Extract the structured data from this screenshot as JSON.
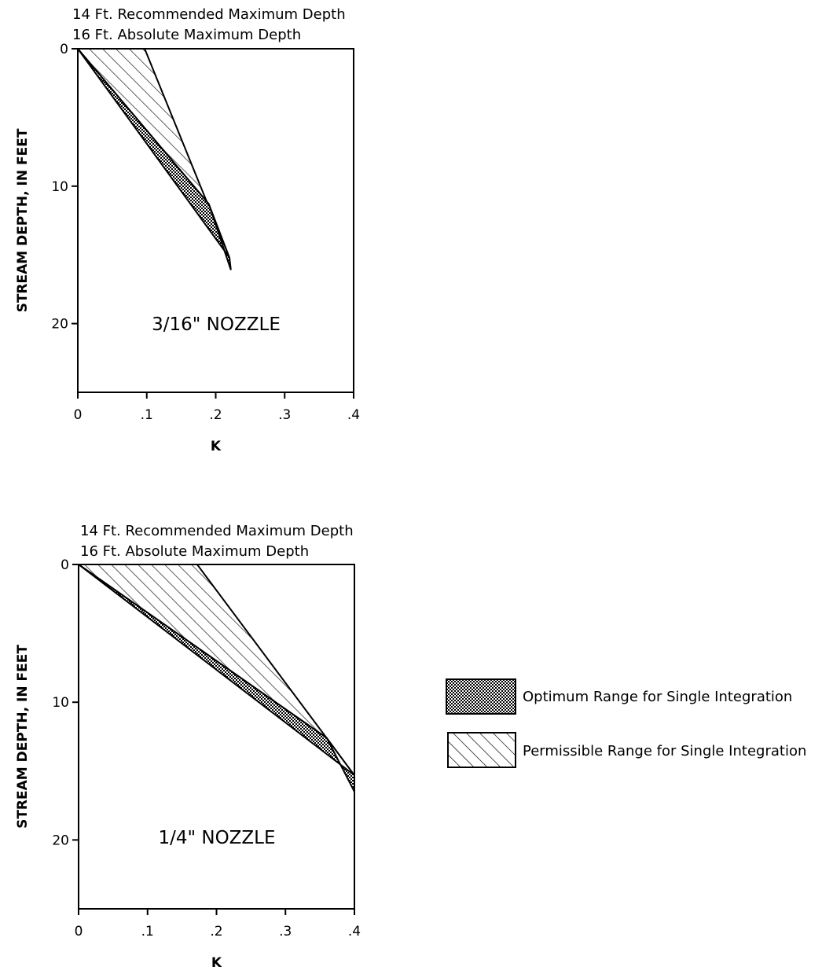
{
  "chart_data": [
    {
      "type": "area",
      "panel_label": "3/16\" NOZZLE",
      "notes": [
        "14 Ft. Recommended Maximum Depth",
        "16 Ft. Absolute Maximum Depth"
      ],
      "xlabel": "K",
      "ylabel": "STREAM DEPTH, IN FEET",
      "xlim": [
        0,
        0.4
      ],
      "ylim": [
        0,
        25
      ],
      "y_inverted": true,
      "xticks": [
        "0",
        ".1",
        ".2",
        ".3",
        ".4"
      ],
      "yticks": [
        "0",
        "10",
        "20"
      ],
      "regions": [
        {
          "name": "Permissible Range for Single Integration",
          "x": [
            0,
            0.097,
            0.22,
            0.19,
            0
          ],
          "y": [
            0,
            0,
            15.2,
            11.3,
            0
          ]
        },
        {
          "name": "Optimum Range for Single Integration",
          "x": [
            0,
            0.19,
            0.222,
            0.22,
            0
          ],
          "y": [
            0,
            11.3,
            16.1,
            15.2,
            0
          ]
        }
      ]
    },
    {
      "type": "area",
      "panel_label": "1/4\" NOZZLE",
      "notes": [
        "14 Ft. Recommended Maximum Depth",
        "16 Ft. Absolute Maximum Depth"
      ],
      "xlabel": "K",
      "ylabel": "STREAM DEPTH, IN FEET",
      "xlim": [
        0,
        0.4
      ],
      "ylim": [
        0,
        25
      ],
      "y_inverted": true,
      "xticks": [
        "0",
        ".1",
        ".2",
        ".3",
        ".4"
      ],
      "yticks": [
        "0",
        "10",
        "20"
      ],
      "regions": [
        {
          "name": "Permissible Range for Single Integration",
          "x": [
            0,
            0.172,
            0.4,
            0.36,
            0
          ],
          "y": [
            0,
            0,
            15.3,
            12.6,
            0
          ]
        },
        {
          "name": "Optimum Range for Single Integration",
          "x": [
            0,
            0.36,
            0.4,
            0.4,
            0
          ],
          "y": [
            0,
            12.6,
            16.5,
            15.3,
            0
          ]
        }
      ]
    }
  ],
  "legend": {
    "placement": "right",
    "items": [
      {
        "label": "Optimum Range for Single Integration",
        "pattern": "dotted"
      },
      {
        "label": "Permissible Range for Single Integration",
        "pattern": "hatched"
      }
    ]
  }
}
